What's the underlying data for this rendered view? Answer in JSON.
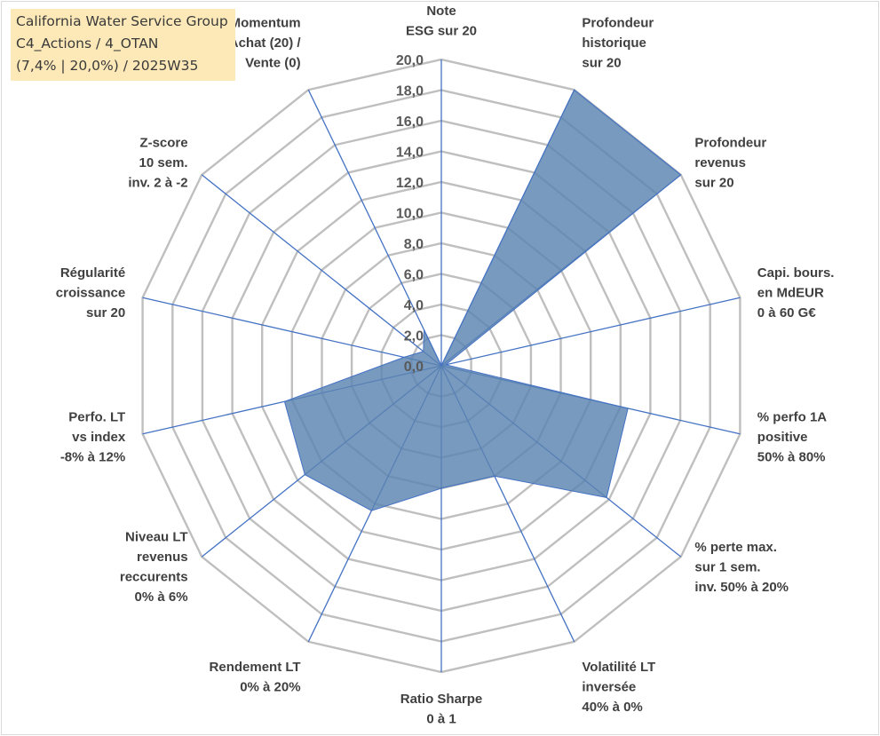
{
  "badge": {
    "line1": "California Water Service Group",
    "line2": "C4_Actions / 4_OTAN",
    "line3": "(7,4% | 20,0%) / 2025W35"
  },
  "chart_data": {
    "type": "radar",
    "rmin": 0,
    "rmax": 20,
    "tick_step": 2,
    "tick_labels": [
      "0,0",
      "2,0",
      "4,0",
      "6,0",
      "8,0",
      "10,0",
      "12,0",
      "14,0",
      "16,0",
      "18,0",
      "20,0"
    ],
    "fill_color": "#5b84b1",
    "axis_color": "#4472c4",
    "grid_color": "#bfbfbf",
    "axes": [
      {
        "label": [
          "Note",
          "ESG sur 20"
        ],
        "value": 0
      },
      {
        "label": [
          "Profondeur",
          "historique",
          "sur 20"
        ],
        "value": 20
      },
      {
        "label": [
          "Profondeur",
          "revenus",
          "sur 20"
        ],
        "value": 20
      },
      {
        "label": [
          "Capi. bours.",
          "en MdEUR",
          "0 à 60 G€"
        ],
        "value": 0.3
      },
      {
        "label": [
          "% perfo 1A",
          "positive",
          "50% à 80%"
        ],
        "value": 12.5
      },
      {
        "label": [
          "% perte max.",
          "sur 1 sem.",
          "inv. 50% à 20%"
        ],
        "value": 13.8
      },
      {
        "label": [
          "Volatilité LT",
          "inversée",
          "40% à 0%"
        ],
        "value": 8
      },
      {
        "label": [
          "Ratio Sharpe",
          "0 à 1"
        ],
        "value": 8
      },
      {
        "label": [
          "Rendement LT",
          "0% à 20%"
        ],
        "value": 10.5
      },
      {
        "label": [
          "Niveau LT",
          "revenus",
          "reccurents",
          "0% à 6%"
        ],
        "value": 11.4
      },
      {
        "label": [
          "Perfo. LT",
          "vs index",
          "-8% à 12%"
        ],
        "value": 10.5
      },
      {
        "label": [
          "Régularité",
          "croissance",
          "sur 20"
        ],
        "value": 2.5
      },
      {
        "label": [
          "Z-score",
          "10 sem.",
          "inv. 2 à -2"
        ],
        "value": 1.5
      },
      {
        "label": [
          "Momentum",
          "Achat (20) /",
          "Vente (0)"
        ],
        "value": 2.6
      }
    ]
  }
}
